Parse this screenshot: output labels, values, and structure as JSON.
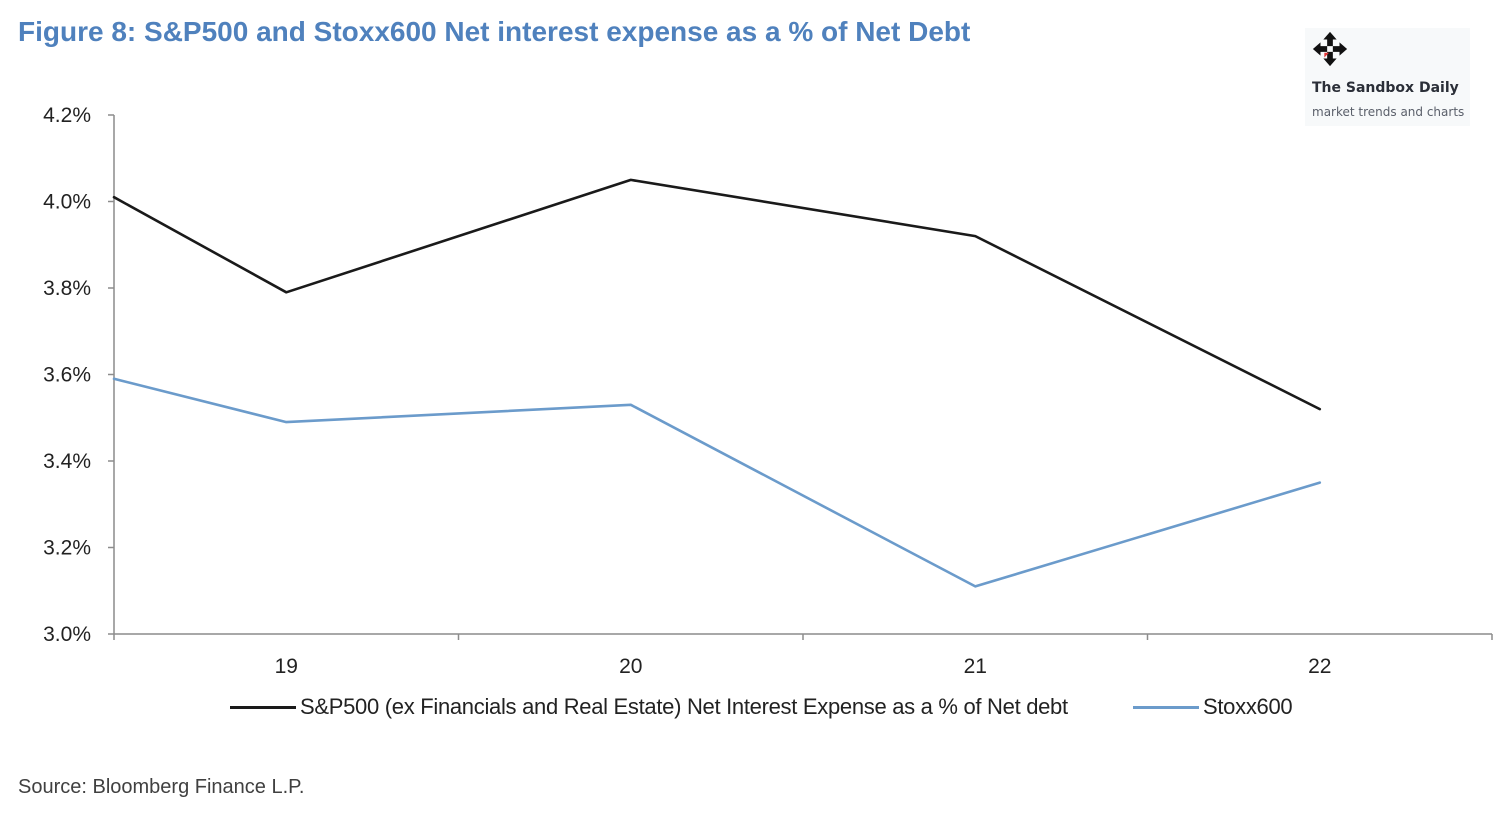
{
  "title": "Figure 8: S&P500 and Stoxx600 Net interest expense as a % of Net Debt",
  "source": "Source: Bloomberg Finance L.P.",
  "brand": {
    "name": "The Sandbox Daily",
    "tagline": "market trends and charts",
    "icon": "move-arrows-icon"
  },
  "colors": {
    "title": "#4f81bd",
    "sp500": "#1a1a1a",
    "stoxx600": "#6b9bcb",
    "axis": "#8c8c8c"
  },
  "chart_data": {
    "type": "line",
    "title": "Figure 8: S&P500 and Stoxx600 Net interest expense as a % of Net Debt",
    "xlabel": "",
    "ylabel": "",
    "x_start": 18.5,
    "categories": [
      "19",
      "20",
      "21",
      "22"
    ],
    "x": [
      18.5,
      19,
      20,
      21,
      22
    ],
    "ylim": [
      3.0,
      4.2
    ],
    "yticks": [
      3.0,
      3.2,
      3.4,
      3.6,
      3.8,
      4.0,
      4.2
    ],
    "ytick_labels": [
      "3.0%",
      "3.2%",
      "3.4%",
      "3.6%",
      "3.8%",
      "4.0%",
      "4.2%"
    ],
    "grid": false,
    "legend_position": "bottom",
    "series": [
      {
        "name": "S&P500 (ex Financials and Real Estate) Net Interest Expense as a % of Net debt",
        "color": "#1a1a1a",
        "values": [
          4.01,
          3.79,
          4.05,
          3.92,
          3.52
        ]
      },
      {
        "name": "Stoxx600",
        "color": "#6b9bcb",
        "values": [
          3.59,
          3.49,
          3.53,
          3.11,
          3.35
        ]
      }
    ]
  }
}
